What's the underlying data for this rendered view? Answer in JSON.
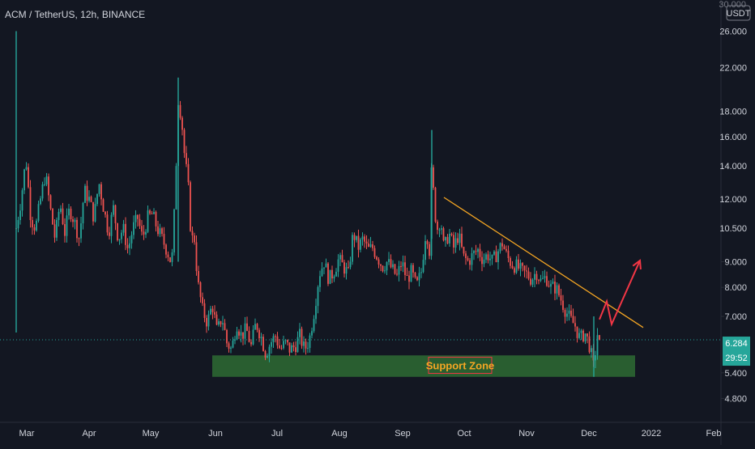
{
  "chart_data": {
    "type": "candlestick",
    "title": "ACM / TetherUS, 12h, BINANCE",
    "currency": "USDT",
    "y_scale": "log",
    "ylim": [
      4.3,
      30.0
    ],
    "y_ticks": [
      "26.000",
      "22.000",
      "18.000",
      "16.000",
      "14.000",
      "12.000",
      "10.500",
      "9.000",
      "8.000",
      "7.000",
      "5.400",
      "4.800"
    ],
    "y_top_partial_label": "30.000",
    "x_ticks": [
      "Mar",
      "Apr",
      "May",
      "Jun",
      "Jul",
      "Aug",
      "Sep",
      "Oct",
      "Nov",
      "Dec",
      "2022",
      "Feb"
    ],
    "last_price": "6.284",
    "countdown": "29:52",
    "colors": {
      "background": "#131722",
      "up": "#26a69a",
      "down": "#ef5350",
      "trendline": "#f5a623",
      "arrow": "#f23645",
      "support_fill": "#2e6b33",
      "support_label_text": "#f5a623",
      "support_label_border": "#f23645",
      "price_label_bg": "#26a69a",
      "axis_text": "#d1d4dc"
    },
    "annotations": {
      "support_zone": {
        "label": "Support Zone",
        "price_low": 5.3,
        "price_high": 5.85,
        "from": "Jun",
        "to": "Dec-end"
      },
      "trendline": {
        "from": {
          "date": "Sep-18",
          "price": 12.1
        },
        "to": {
          "date": "Dec-end",
          "price": 6.65
        }
      },
      "projection_arrow": {
        "points": [
          {
            "date": "Dec-5",
            "price": 6.9
          },
          {
            "date": "Dec-10",
            "price": 7.5
          },
          {
            "date": "Dec-12",
            "price": 6.75
          },
          {
            "date": "Dec-20",
            "price": 9.05
          }
        ]
      }
    },
    "price_path": [
      [
        0,
        16.5
      ],
      [
        3,
        25.0
      ],
      [
        6,
        18.0
      ],
      [
        10,
        9.0
      ],
      [
        14,
        13.0
      ],
      [
        20,
        10.5
      ],
      [
        26,
        12.0
      ],
      [
        32,
        14.5
      ],
      [
        38,
        11.0
      ],
      [
        44,
        10.5
      ],
      [
        50,
        12.0
      ],
      [
        56,
        13.5
      ],
      [
        62,
        11.5
      ],
      [
        68,
        10.0
      ],
      [
        74,
        11.8
      ],
      [
        80,
        10.3
      ],
      [
        86,
        11.5
      ],
      [
        92,
        10.8
      ],
      [
        98,
        10.0
      ],
      [
        104,
        12.5
      ],
      [
        110,
        12.0
      ],
      [
        116,
        11.0
      ],
      [
        122,
        13.0
      ],
      [
        128,
        11.5
      ],
      [
        134,
        10.3
      ],
      [
        140,
        11.5
      ],
      [
        146,
        10.0
      ],
      [
        152,
        10.5
      ],
      [
        158,
        9.5
      ],
      [
        164,
        10.5
      ],
      [
        170,
        11.0
      ],
      [
        176,
        10.0
      ],
      [
        182,
        11.0
      ],
      [
        188,
        11.2
      ],
      [
        194,
        10.5
      ],
      [
        200,
        10.0
      ],
      [
        206,
        9.5
      ],
      [
        212,
        8.9
      ],
      [
        216,
        12.0
      ],
      [
        220,
        19.0
      ],
      [
        224,
        17.5
      ],
      [
        228,
        14.5
      ],
      [
        232,
        13.0
      ],
      [
        236,
        10.0
      ],
      [
        240,
        10.0
      ],
      [
        244,
        8.2
      ],
      [
        250,
        7.2
      ],
      [
        256,
        6.8
      ],
      [
        262,
        7.4
      ],
      [
        268,
        6.5
      ],
      [
        274,
        7.0
      ],
      [
        280,
        6.2
      ],
      [
        286,
        6.0
      ],
      [
        292,
        6.8
      ],
      [
        298,
        6.4
      ],
      [
        304,
        6.6
      ],
      [
        310,
        6.1
      ],
      [
        316,
        6.8
      ],
      [
        322,
        6.4
      ],
      [
        328,
        5.9
      ],
      [
        334,
        6.2
      ],
      [
        340,
        6.4
      ],
      [
        346,
        6.0
      ],
      [
        352,
        6.2
      ],
      [
        358,
        6.0
      ],
      [
        364,
        6.1
      ],
      [
        370,
        6.4
      ],
      [
        376,
        6.0
      ],
      [
        382,
        6.3
      ],
      [
        388,
        7.2
      ],
      [
        394,
        8.5
      ],
      [
        400,
        9.0
      ],
      [
        406,
        8.3
      ],
      [
        412,
        8.6
      ],
      [
        418,
        9.1
      ],
      [
        424,
        8.8
      ],
      [
        430,
        8.5
      ],
      [
        436,
        10.3
      ],
      [
        442,
        9.6
      ],
      [
        448,
        10.0
      ],
      [
        454,
        9.5
      ],
      [
        460,
        9.6
      ],
      [
        466,
        9.2
      ],
      [
        472,
        8.8
      ],
      [
        478,
        9.0
      ],
      [
        484,
        8.7
      ],
      [
        490,
        8.4
      ],
      [
        496,
        9.0
      ],
      [
        502,
        8.3
      ],
      [
        508,
        8.6
      ],
      [
        514,
        8.0
      ],
      [
        520,
        8.6
      ],
      [
        526,
        10.5
      ],
      [
        530,
        9.5
      ],
      [
        533,
        14.5
      ],
      [
        536,
        11.5
      ],
      [
        540,
        10.5
      ],
      [
        544,
        11.0
      ],
      [
        548,
        9.5
      ],
      [
        554,
        10.3
      ],
      [
        560,
        9.6
      ],
      [
        566,
        10.2
      ],
      [
        572,
        9.2
      ],
      [
        578,
        9.0
      ],
      [
        584,
        9.3
      ],
      [
        590,
        9.5
      ],
      [
        596,
        9.1
      ],
      [
        602,
        9.3
      ],
      [
        608,
        9.0
      ],
      [
        614,
        9.4
      ],
      [
        620,
        9.8
      ],
      [
        626,
        9.2
      ],
      [
        632,
        8.9
      ],
      [
        638,
        8.8
      ],
      [
        644,
        8.6
      ],
      [
        650,
        8.5
      ],
      [
        656,
        8.3
      ],
      [
        662,
        8.6
      ],
      [
        668,
        8.2
      ],
      [
        674,
        8.4
      ],
      [
        680,
        8.0
      ],
      [
        686,
        8.0
      ],
      [
        692,
        7.6
      ],
      [
        698,
        7.2
      ],
      [
        704,
        6.9
      ],
      [
        710,
        6.7
      ],
      [
        716,
        6.3
      ],
      [
        722,
        6.5
      ],
      [
        728,
        6.1
      ],
      [
        733,
        5.5
      ],
      [
        736,
        6.2
      ],
      [
        740,
        6.9
      ],
      [
        742,
        6.284
      ]
    ],
    "spikes": [
      {
        "x": 20,
        "high": 26.0,
        "low": 6.5
      },
      {
        "x": 220,
        "high": 21.0,
        "low": 9.0
      },
      {
        "x": 533,
        "high": 16.5,
        "low": 10.0
      },
      {
        "x": 733,
        "high": 7.0,
        "low": 5.3
      }
    ]
  }
}
